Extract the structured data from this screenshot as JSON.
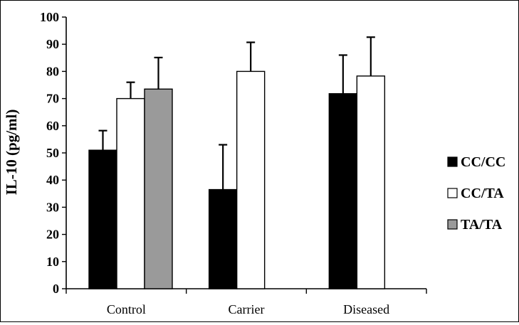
{
  "chart_data": {
    "type": "bar",
    "categories": [
      "Control",
      "Carrier",
      "Diseased"
    ],
    "series": [
      {
        "name": "CC/CC",
        "color": "#000000",
        "values": [
          51,
          36.5,
          71.8
        ],
        "errors": [
          7.2,
          16.5,
          14.2
        ]
      },
      {
        "name": "CC/TA",
        "color": "#ffffff",
        "values": [
          70,
          80,
          78.3
        ],
        "errors": [
          6,
          10.7,
          14.3
        ]
      },
      {
        "name": "TA/TA",
        "color": "#9a9a9a",
        "values": [
          73.5,
          null,
          null
        ],
        "errors": [
          11.6,
          null,
          null
        ]
      }
    ],
    "ylabel": "IL-10 (pg/ml)",
    "xlabel": "",
    "title": "",
    "ylim": [
      0,
      100
    ],
    "yticks": [
      "0",
      "10",
      "20",
      "30",
      "40",
      "50",
      "60",
      "70",
      "80",
      "90",
      "100"
    ],
    "grid": false,
    "legend_position": "right"
  }
}
